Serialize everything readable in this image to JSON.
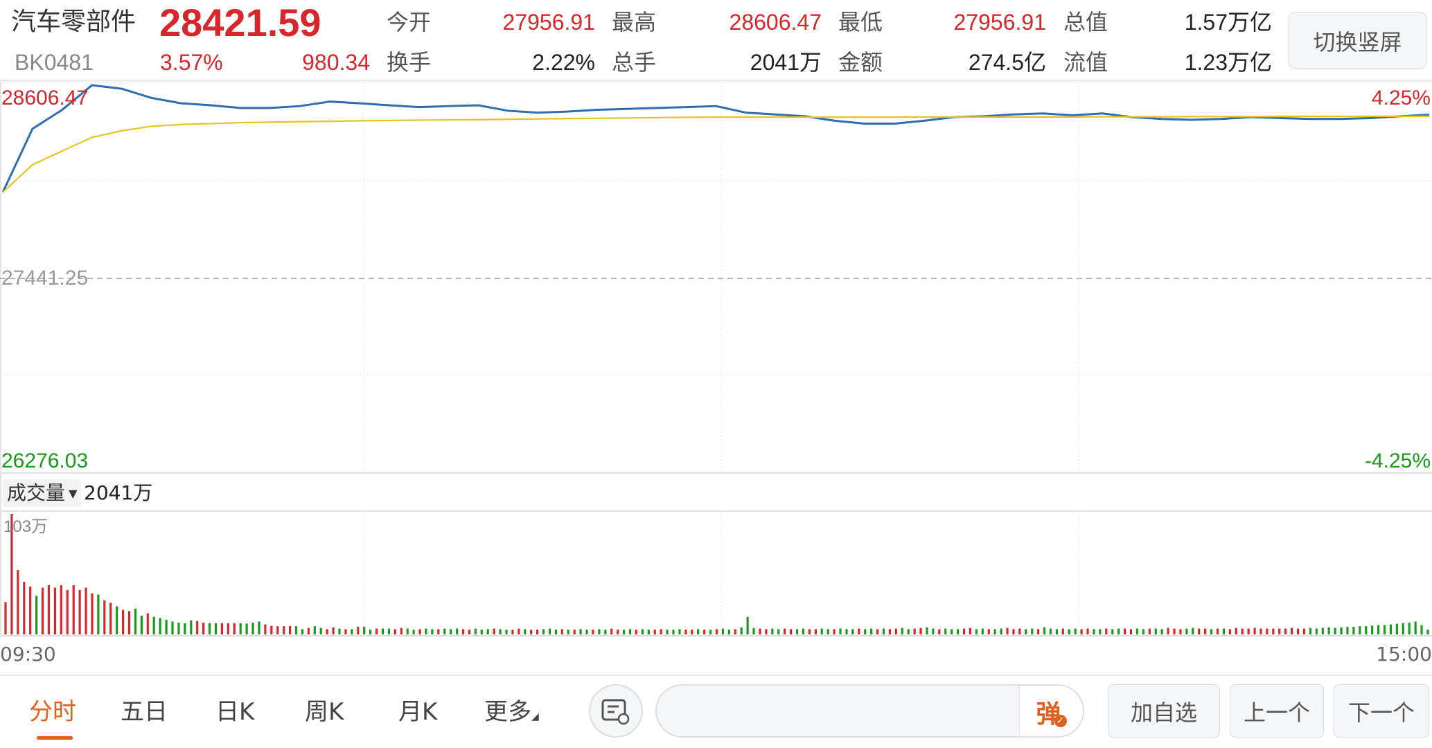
{
  "header": {
    "name": "汽车零部件",
    "price": "28421.59",
    "code": "BK0481",
    "change_pct": "3.57%",
    "change": "980.34",
    "stats": [
      {
        "label": "今开",
        "value": "27956.91",
        "color": "red"
      },
      {
        "label": "最高",
        "value": "28606.47",
        "color": "red"
      },
      {
        "label": "最低",
        "value": "27956.91",
        "color": "red"
      },
      {
        "label": "总值",
        "value": "1.57万亿",
        "color": "dark"
      },
      {
        "label": "换手",
        "value": "2.22%",
        "color": "dark"
      },
      {
        "label": "总手",
        "value": "2041万",
        "color": "dark"
      },
      {
        "label": "金额",
        "value": "274.5亿",
        "color": "dark"
      },
      {
        "label": "流值",
        "value": "1.23万亿",
        "color": "dark"
      }
    ],
    "switch_button": "切换竖屏"
  },
  "chart_data": [
    {
      "type": "line",
      "y_top_label": "28606.47",
      "y_mid_label": "27441.25",
      "y_bottom_label": "26276.03",
      "right_top_label": "4.25%",
      "right_bottom_label": "-4.25%",
      "ylim": [
        26276.03,
        28606.47
      ],
      "prev_close": 27441.25,
      "x_start": "09:30",
      "x_end": "15:00",
      "x_minutes_step": 5,
      "colors": {
        "price": "#2f6db0",
        "avg": "#e6c423",
        "up": "#d9262c",
        "down": "#1a9a1a"
      },
      "series": [
        {
          "key": "price",
          "values": [
            27956.91,
            28337,
            28451,
            28598,
            28577,
            28522,
            28490,
            28478,
            28462,
            28462,
            28473,
            28500,
            28490,
            28478,
            28467,
            28473,
            28478,
            28445,
            28434,
            28440,
            28451,
            28456,
            28462,
            28467,
            28473,
            28434,
            28423,
            28412,
            28385,
            28368,
            28368,
            28385,
            28407,
            28412,
            28423,
            28429,
            28418,
            28429,
            28407,
            28396,
            28391,
            28396,
            28407,
            28401,
            28396,
            28396,
            28401,
            28412,
            28421.59
          ]
        },
        {
          "key": "avg",
          "values": [
            27956.91,
            28122,
            28204,
            28286,
            28325,
            28352,
            28363,
            28368,
            28374,
            28377,
            28380,
            28382,
            28385,
            28387,
            28389,
            28391,
            28392,
            28394,
            28396,
            28398,
            28400,
            28402,
            28404,
            28406,
            28407,
            28407,
            28407,
            28407,
            28407,
            28407,
            28407,
            28408,
            28408,
            28408,
            28408,
            28408,
            28408,
            28409,
            28409,
            28409,
            28410,
            28410,
            28410,
            28411,
            28411,
            28411,
            28412,
            28412,
            28412
          ]
        }
      ]
    },
    {
      "type": "bar",
      "indicator_label": "成交量",
      "total": "2041万",
      "max_label": "103万",
      "ymax": 103,
      "values": [
        27.6,
        103,
        55,
        45,
        41,
        33,
        40,
        42,
        40,
        42,
        38,
        42,
        38,
        40,
        35,
        34,
        29,
        27,
        24,
        21,
        20,
        22,
        16,
        18,
        15,
        14,
        12.5,
        11,
        10,
        9.5,
        12,
        11.5,
        10,
        9.6,
        9.6,
        9.6,
        9.6,
        9.6,
        9.6,
        9.3,
        10,
        11,
        8.6,
        7.3,
        7,
        7,
        7.2,
        7,
        4.5,
        5.5,
        7,
        5.5,
        4.5,
        6,
        5,
        4.5,
        4.5,
        6.5,
        6.5,
        4,
        5,
        5,
        5,
        4.5,
        5.5,
        5,
        4,
        4.5,
        5,
        4.5,
        4.5,
        5,
        4.5,
        5,
        4.5,
        4,
        5,
        4,
        4.5,
        5,
        4.5,
        4,
        4,
        5,
        4.5,
        4,
        4,
        4.5,
        5,
        4,
        4.5,
        4,
        4,
        4.5,
        4,
        4,
        4.5,
        4,
        5,
        4,
        4,
        4.5,
        4,
        4.5,
        4,
        4,
        4.5,
        4,
        4,
        4.5,
        4,
        4,
        4.5,
        4,
        4,
        4.5,
        5,
        4,
        4.5,
        6,
        15,
        5.5,
        5,
        4.5,
        5,
        4.5,
        5,
        4.5,
        4.5,
        5,
        4.5,
        4.5,
        5,
        4.5,
        4.5,
        5,
        4.5,
        4.5,
        5,
        4.5,
        5,
        4.5,
        5,
        4.5,
        5,
        5.5,
        4.5,
        5,
        5.5,
        6,
        5,
        4.5,
        5,
        4.5,
        4.5,
        5,
        5.5,
        4.5,
        5,
        4.5,
        4.5,
        5,
        5.5,
        4.5,
        5,
        4.5,
        5,
        4.5,
        6,
        5,
        4.5,
        5,
        4.5,
        5,
        4.5,
        5,
        4.5,
        4.5,
        5,
        4.5,
        5,
        5,
        4.5,
        5,
        4.5,
        5,
        5,
        4.5,
        5.5,
        5,
        4.5,
        5,
        5.5,
        5,
        5,
        4.5,
        5,
        5,
        4.5,
        5.5,
        5,
        5,
        5.5,
        5,
        5,
        5,
        5,
        5,
        5.5,
        5,
        5,
        5.5,
        5,
        5.5,
        6,
        5.5,
        6,
        6.5,
        6.5,
        7,
        7,
        7.5,
        8,
        8,
        8.5,
        9,
        9.5,
        10,
        11,
        8,
        4
      ],
      "directions": "uuuuuduuuuuuuuuduuduudduddddddduudduuudddduuuuuddudduudududdudduuddudduddduudddudduuduudddududdudduuddudduuddduudududduddduudduudduuddudddudduduudduudduddduuddudduuuddudddudduuddudduuddudduuudduududuuuuuuuuuuuuu"
    }
  ],
  "bottom": {
    "tabs": [
      "分时",
      "五日",
      "日K",
      "周K",
      "月K",
      "更多"
    ],
    "active_tab": 0,
    "danmaku": "弹",
    "add_watch": "加自选",
    "prev": "上一个",
    "next": "下一个"
  }
}
